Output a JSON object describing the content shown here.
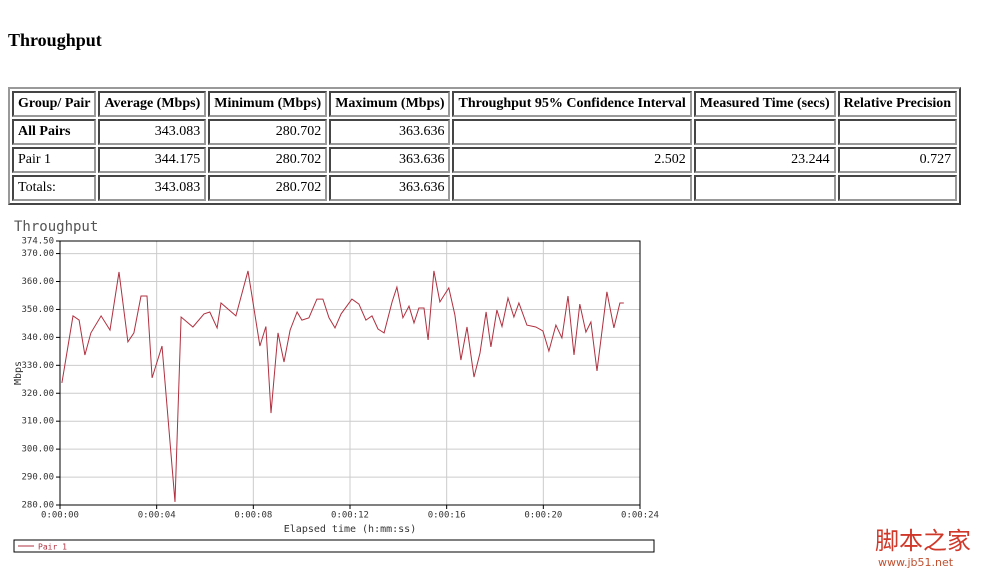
{
  "title": "Throughput",
  "table": {
    "headers": [
      "Group/ Pair",
      "Average (Mbps)",
      "Minimum (Mbps)",
      "Maximum (Mbps)",
      "Throughput 95% Confidence Interval",
      "Measured Time (secs)",
      "Relative Precision"
    ],
    "rows": [
      [
        "All Pairs",
        343.083,
        280.702,
        363.636,
        null,
        null,
        null
      ],
      [
        "Pair 1",
        344.175,
        280.702,
        363.636,
        2.502,
        23.244,
        0.727
      ],
      [
        "Totals:",
        343.083,
        280.702,
        363.636,
        null,
        null,
        null
      ]
    ]
  },
  "chart_data": {
    "type": "line",
    "title": "Throughput",
    "x_label": "Elapsed time (h:mm:ss)",
    "y_label": "Mbps",
    "xlim": [
      0,
      24
    ],
    "xticks": [
      {
        "value": 0,
        "label": "0:00:00"
      },
      {
        "value": 4,
        "label": "0:00:04"
      },
      {
        "value": 8,
        "label": "0:00:08"
      },
      {
        "value": 12,
        "label": "0:00:12"
      },
      {
        "value": 16,
        "label": "0:00:16"
      },
      {
        "value": 20,
        "label": "0:00:20"
      },
      {
        "value": 24,
        "label": "0:00:24"
      }
    ],
    "ylim": [
      280,
      374.5
    ],
    "yticks": [
      {
        "value": 280,
        "label": "280.00"
      },
      {
        "value": 290,
        "label": "290.00"
      },
      {
        "value": 300,
        "label": "300.00"
      },
      {
        "value": 310,
        "label": "310.00"
      },
      {
        "value": 320,
        "label": "320.00"
      },
      {
        "value": 330,
        "label": "330.00"
      },
      {
        "value": 340,
        "label": "340.00"
      },
      {
        "value": 350,
        "label": "350.00"
      },
      {
        "value": 360,
        "label": "360.00"
      },
      {
        "value": 370,
        "label": "370.00"
      },
      {
        "value": 374.5,
        "label": "374.50"
      }
    ],
    "grid": true,
    "x": [
      0.08,
      0.54,
      0.79,
      1.03,
      1.28,
      1.7,
      2.07,
      2.44,
      2.81,
      3.06,
      3.35,
      3.6,
      3.81,
      4.22,
      4.76,
      5.01,
      5.5,
      5.96,
      6.2,
      6.5,
      6.66,
      7.28,
      7.78,
      8.27,
      8.52,
      8.73,
      9.02,
      9.27,
      9.52,
      9.81,
      10.01,
      10.3,
      10.63,
      10.88,
      11.13,
      11.38,
      11.63,
      12.08,
      12.37,
      12.66,
      12.91,
      13.16,
      13.41,
      13.74,
      13.94,
      14.19,
      14.44,
      14.65,
      14.85,
      15.06,
      15.23,
      15.47,
      15.72,
      16.09,
      16.34,
      16.59,
      16.84,
      17.13,
      17.38,
      17.63,
      17.83,
      18.08,
      18.29,
      18.54,
      18.78,
      18.99,
      19.32,
      19.69,
      19.98,
      20.23,
      20.52,
      20.77,
      21.02,
      21.27,
      21.51,
      21.76,
      21.97,
      22.22,
      22.63,
      22.92,
      23.17,
      23.33
    ],
    "series": [
      {
        "name": "Pair 1",
        "color": "#b0303f",
        "values": [
          323.7,
          347.7,
          346.2,
          333.7,
          341.6,
          347.7,
          342.6,
          363.4,
          338.4,
          341.6,
          354.8,
          354.8,
          325.5,
          336.9,
          281.1,
          347.3,
          343.7,
          348.4,
          349.1,
          343.4,
          352.3,
          347.7,
          363.8,
          336.9,
          343.9,
          312.9,
          341.6,
          331.2,
          342.6,
          349.1,
          346.2,
          347.0,
          353.7,
          353.7,
          347.0,
          343.4,
          348.4,
          353.7,
          351.9,
          346.2,
          347.7,
          343.0,
          341.6,
          352.7,
          358.0,
          347.0,
          351.2,
          345.2,
          350.5,
          350.5,
          339.1,
          363.8,
          352.7,
          357.7,
          348.0,
          331.9,
          343.7,
          325.8,
          334.4,
          349.1,
          336.6,
          349.8,
          343.9,
          354.1,
          347.3,
          352.3,
          344.4,
          343.7,
          342.3,
          335.1,
          344.4,
          339.8,
          354.8,
          333.7,
          351.9,
          341.9,
          345.5,
          328.0,
          356.3,
          343.4,
          352.3,
          352.3
        ]
      }
    ]
  },
  "watermark": {
    "name": "脚本之家",
    "url": "www.jb51.net"
  }
}
